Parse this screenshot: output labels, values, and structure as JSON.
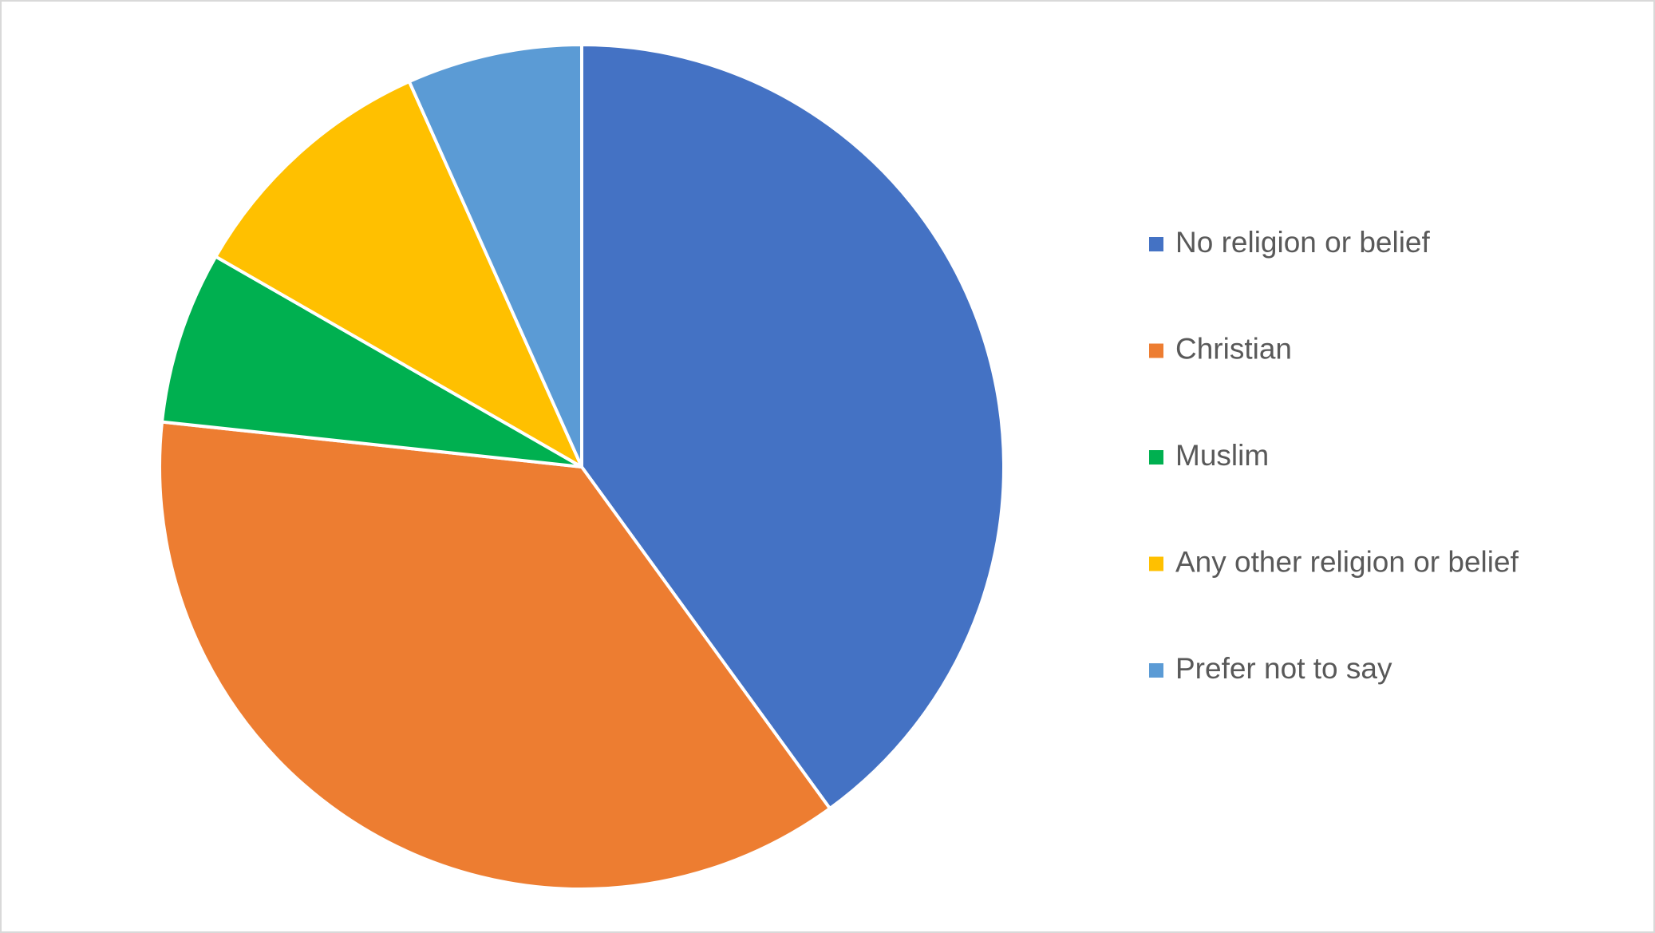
{
  "chart_data": {
    "type": "pie",
    "categories": [
      "No religion or belief",
      "Christian",
      "Muslim",
      "Any other religion or belief",
      "Prefer not to say"
    ],
    "values": [
      40,
      36.7,
      6.6,
      10,
      6.7
    ],
    "colors": [
      "#4472c4",
      "#ed7d31",
      "#00b050",
      "#ffc000",
      "#5b9bd5"
    ],
    "legend": "right"
  }
}
